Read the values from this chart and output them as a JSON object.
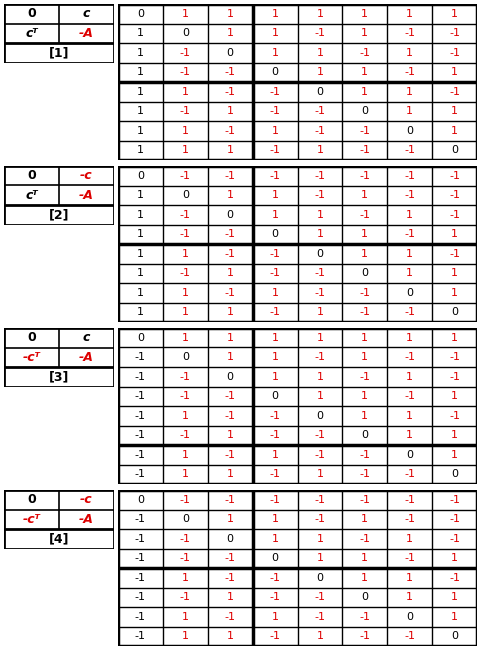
{
  "tables": [
    {
      "label_top_left": "0",
      "label_top_right": "c",
      "label_mid_left": "cᵀ",
      "label_mid_right": "-A",
      "label_bottom": "[1]",
      "top_right_red": false,
      "mid_left_red": false,
      "header_row": [
        0,
        1,
        1,
        1,
        1,
        1,
        1,
        1
      ],
      "data_rows": [
        [
          1,
          0,
          1,
          1,
          -1,
          1,
          -1,
          -1
        ],
        [
          1,
          -1,
          0,
          1,
          1,
          -1,
          1,
          -1
        ],
        [
          1,
          -1,
          -1,
          0,
          1,
          1,
          -1,
          1
        ],
        [
          1,
          1,
          -1,
          -1,
          0,
          1,
          1,
          -1
        ],
        [
          1,
          -1,
          1,
          -1,
          -1,
          0,
          1,
          1
        ],
        [
          1,
          1,
          -1,
          1,
          -1,
          -1,
          0,
          1
        ],
        [
          1,
          1,
          1,
          -1,
          1,
          -1,
          -1,
          0
        ]
      ],
      "thick_col_after": 3,
      "thick_row_after": 4
    },
    {
      "label_top_left": "0",
      "label_top_right": "-c",
      "label_mid_left": "cᵀ",
      "label_mid_right": "-A",
      "label_bottom": "[2]",
      "top_right_red": true,
      "mid_left_red": false,
      "header_row": [
        0,
        -1,
        -1,
        -1,
        -1,
        -1,
        -1,
        -1
      ],
      "data_rows": [
        [
          1,
          0,
          1,
          1,
          -1,
          1,
          -1,
          -1
        ],
        [
          1,
          -1,
          0,
          1,
          1,
          -1,
          1,
          -1
        ],
        [
          1,
          -1,
          -1,
          0,
          1,
          1,
          -1,
          1
        ],
        [
          1,
          1,
          -1,
          -1,
          0,
          1,
          1,
          -1
        ],
        [
          1,
          -1,
          1,
          -1,
          -1,
          0,
          1,
          1
        ],
        [
          1,
          1,
          -1,
          1,
          -1,
          -1,
          0,
          1
        ],
        [
          1,
          1,
          1,
          -1,
          1,
          -1,
          -1,
          0
        ]
      ],
      "thick_col_after": 3,
      "thick_row_after": 4
    },
    {
      "label_top_left": "0",
      "label_top_right": "c",
      "label_mid_left": "-cᵀ",
      "label_mid_right": "-A",
      "label_bottom": "[3]",
      "top_right_red": false,
      "mid_left_red": true,
      "header_row": [
        0,
        1,
        1,
        1,
        1,
        1,
        1,
        1
      ],
      "data_rows": [
        [
          -1,
          0,
          1,
          1,
          -1,
          1,
          -1,
          -1
        ],
        [
          -1,
          -1,
          0,
          1,
          1,
          -1,
          1,
          -1
        ],
        [
          -1,
          -1,
          -1,
          0,
          1,
          1,
          -1,
          1
        ],
        [
          -1,
          1,
          -1,
          -1,
          0,
          1,
          1,
          -1
        ],
        [
          -1,
          -1,
          1,
          -1,
          -1,
          0,
          1,
          1
        ],
        [
          -1,
          1,
          -1,
          1,
          -1,
          -1,
          0,
          1
        ],
        [
          -1,
          1,
          1,
          -1,
          1,
          -1,
          -1,
          0
        ]
      ],
      "thick_col_after": 3,
      "thick_row_after": 6
    },
    {
      "label_top_left": "0",
      "label_top_right": "-c",
      "label_mid_left": "-cᵀ",
      "label_mid_right": "-A",
      "label_bottom": "[4]",
      "top_right_red": true,
      "mid_left_red": true,
      "header_row": [
        0,
        -1,
        -1,
        -1,
        -1,
        -1,
        -1,
        -1
      ],
      "data_rows": [
        [
          -1,
          0,
          1,
          1,
          -1,
          1,
          -1,
          -1
        ],
        [
          -1,
          -1,
          0,
          1,
          1,
          -1,
          1,
          -1
        ],
        [
          -1,
          -1,
          -1,
          0,
          1,
          1,
          -1,
          1
        ],
        [
          -1,
          1,
          -1,
          -1,
          0,
          1,
          1,
          -1
        ],
        [
          -1,
          -1,
          1,
          -1,
          -1,
          0,
          1,
          1
        ],
        [
          -1,
          1,
          -1,
          1,
          -1,
          -1,
          0,
          1
        ],
        [
          -1,
          1,
          1,
          -1,
          1,
          -1,
          -1,
          0
        ]
      ],
      "thick_col_after": 3,
      "thick_row_after": 4
    }
  ],
  "red": "#dd0000",
  "black": "#000000",
  "fig_w": 4.81,
  "fig_h": 6.53,
  "dpi": 100
}
